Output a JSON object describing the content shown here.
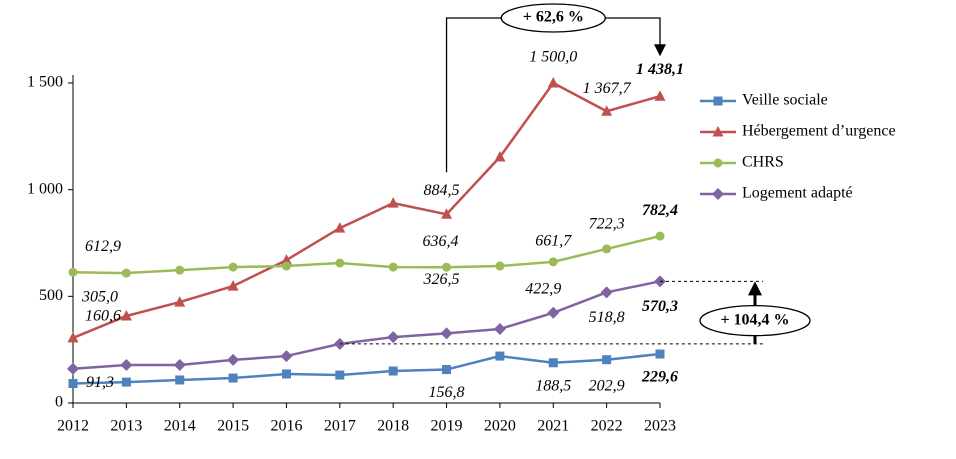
{
  "chart_data": {
    "type": "line",
    "categories": [
      "2012",
      "2013",
      "2014",
      "2015",
      "2016",
      "2017",
      "2018",
      "2019",
      "2020",
      "2021",
      "2022",
      "2023"
    ],
    "series": [
      {
        "name": "Veille sociale",
        "color": "#4f81bd",
        "marker": "square",
        "values": [
          91.3,
          98,
          108,
          117,
          136,
          131,
          150,
          156.8,
          220,
          188.5,
          202.9,
          229.6
        ],
        "value_labels": [
          "91,3",
          null,
          null,
          null,
          null,
          null,
          null,
          "156,8",
          null,
          "188,5",
          "202,9",
          "229,6"
        ]
      },
      {
        "name": "Hébergement d’urgence",
        "color": "#c0504d",
        "marker": "triangle",
        "values": [
          305.0,
          408,
          473,
          548,
          670,
          820,
          937,
          884.5,
          1153,
          1500.0,
          1367.7,
          1438.1
        ],
        "value_labels": [
          "305,0",
          null,
          null,
          null,
          null,
          null,
          null,
          "884,5",
          null,
          "1 500,0",
          "1 367,7",
          "1 438,1"
        ]
      },
      {
        "name": "CHRS",
        "color": "#9bbb59",
        "marker": "circle",
        "values": [
          612.9,
          609,
          623,
          637,
          642,
          656,
          637,
          636.4,
          642,
          661.7,
          722.3,
          782.4
        ],
        "value_labels": [
          "612,9",
          null,
          null,
          null,
          null,
          null,
          null,
          "636,4",
          null,
          "661,7",
          "722,3",
          "782,4"
        ]
      },
      {
        "name": "Logement adapté",
        "color": "#8064a2",
        "marker": "diamond",
        "values": [
          160.6,
          178,
          178,
          202,
          220,
          277,
          309,
          326.5,
          347,
          422.9,
          518.8,
          570.3
        ],
        "value_labels": [
          "160,6",
          null,
          null,
          null,
          null,
          null,
          null,
          "326,5",
          null,
          "422,9",
          "518,8",
          "570,3"
        ]
      }
    ],
    "ylim": [
      0,
      1500
    ],
    "yticks": [
      0,
      500,
      {
        "value": 1000,
        "label": "1 000"
      },
      {
        "value": 1500,
        "label": "1 500"
      }
    ],
    "annotations": [
      "+ 62,6 %",
      "+ 104,4 %"
    ],
    "legend": "right"
  }
}
